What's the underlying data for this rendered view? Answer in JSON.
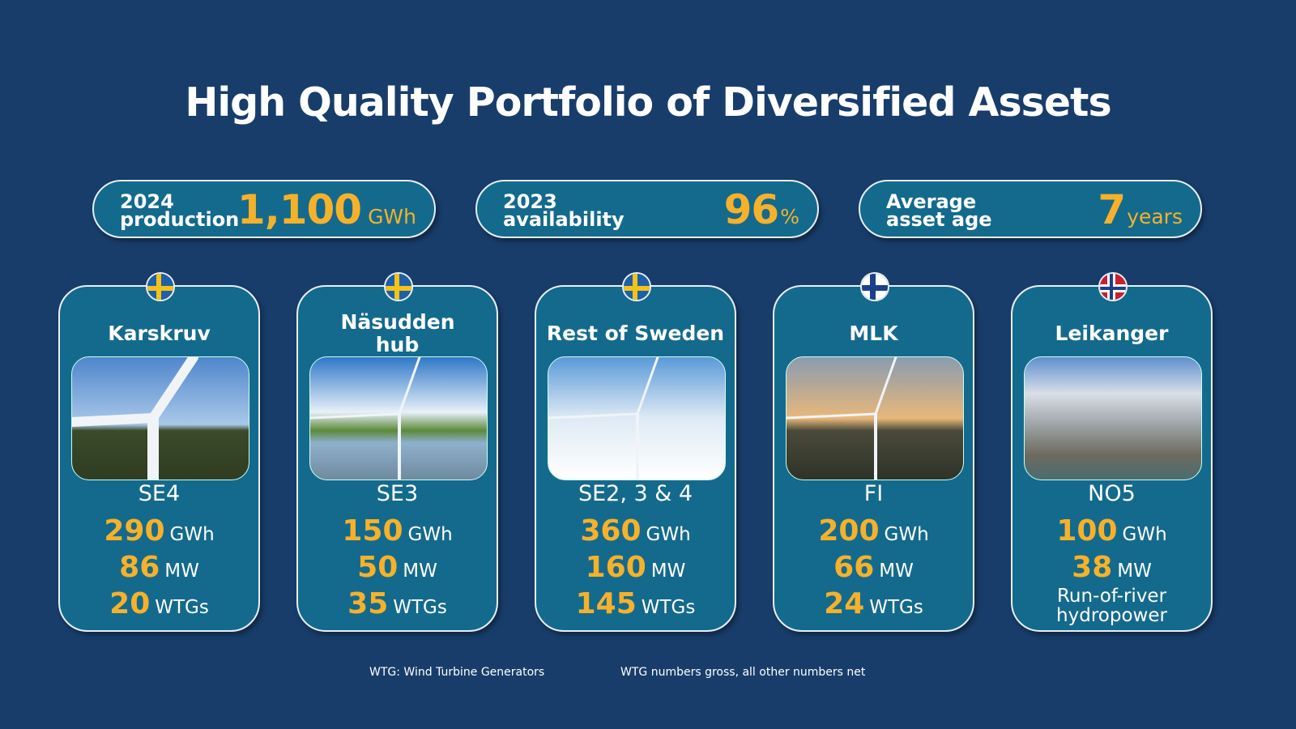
{
  "title": "High Quality Portfolio of Diversified Assets",
  "kpis": [
    {
      "label_1": "2024",
      "label_2": "production",
      "value": "1,100",
      "unit": "GWh"
    },
    {
      "label_1": "2023",
      "label_2": "availability",
      "value": "96",
      "unit": "%"
    },
    {
      "label_1": "Average",
      "label_2": "asset age",
      "value": "7",
      "unit": "years"
    }
  ],
  "assets": [
    {
      "name": "Karskruv",
      "flag": "sweden",
      "zone": "SE4",
      "gwh": "290",
      "gwh_unit": "GWh",
      "mw": "86",
      "mw_unit": "MW",
      "wtgs": "20",
      "wtgs_unit": "WTGs"
    },
    {
      "name": "Näsudden hub",
      "flag": "sweden",
      "zone": "SE3",
      "gwh": "150",
      "gwh_unit": "GWh",
      "mw": "50",
      "mw_unit": "MW",
      "wtgs": "35",
      "wtgs_unit": "WTGs"
    },
    {
      "name": "Rest of Sweden",
      "flag": "sweden",
      "zone": "SE2, 3 & 4",
      "gwh": "360",
      "gwh_unit": "GWh",
      "mw": "160",
      "mw_unit": "MW",
      "wtgs": "145",
      "wtgs_unit": "WTGs"
    },
    {
      "name": "MLK",
      "flag": "finland",
      "zone": "FI",
      "gwh": "200",
      "gwh_unit": "GWh",
      "mw": "66",
      "mw_unit": "MW",
      "wtgs": "24",
      "wtgs_unit": "WTGs"
    },
    {
      "name": "Leikanger",
      "flag": "norway",
      "zone": "NO5",
      "gwh": "100",
      "gwh_unit": "GWh",
      "mw": "38",
      "mw_unit": "MW",
      "note": "Run-of-river hydropower"
    }
  ],
  "footnotes": [
    "WTG: Wind Turbine Generators",
    "WTG numbers gross, all other numbers net"
  ],
  "colors": {
    "background": "#183d6a",
    "card": "#146a8d",
    "accent": "#f6b12a"
  }
}
